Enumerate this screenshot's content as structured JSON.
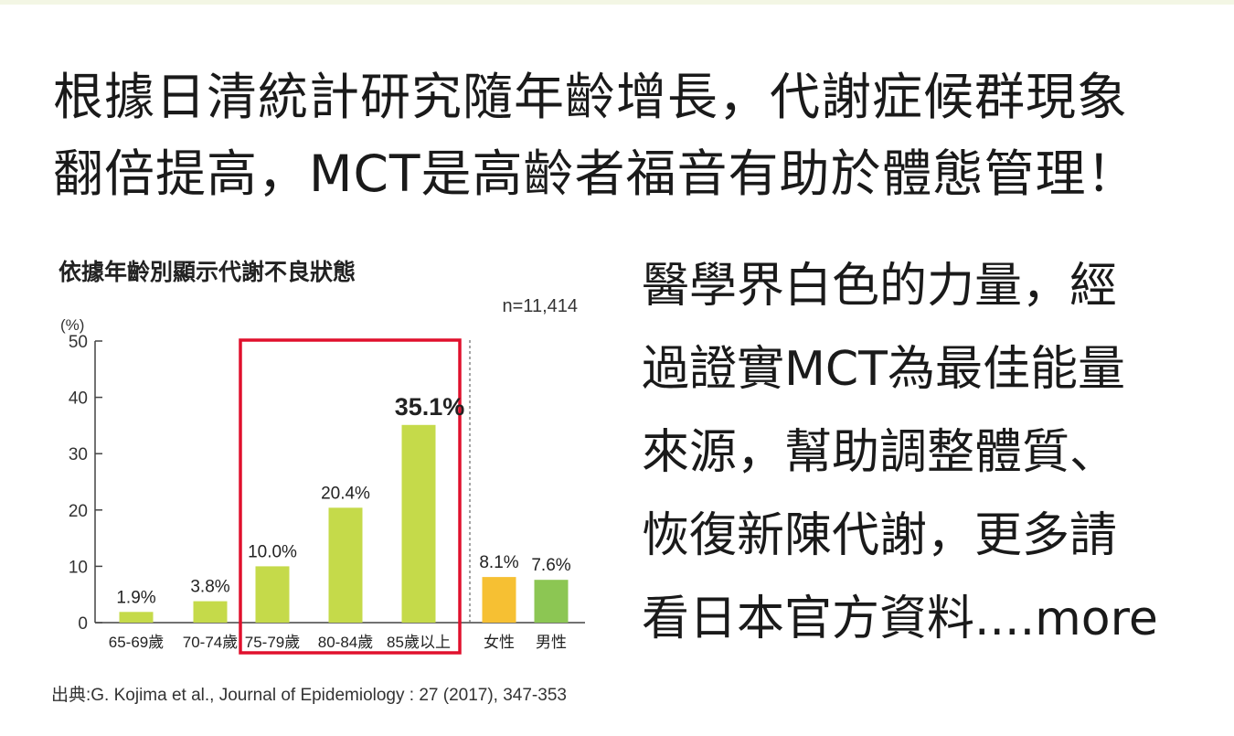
{
  "headline": {
    "line1": "根據日清統計研究隨年齡增長，代謝症候群現象",
    "line2": "翻倍提高，MCT是高齡者福音有助於體態管理！"
  },
  "side_text": {
    "lines": [
      "醫學界白色的力量，經",
      "過證實MCT為最佳能量",
      "來源，幫助調整體質、",
      "恢復新陳代謝，更多請",
      "看日本官方資料....more"
    ]
  },
  "citation": "出典:G. Kojima et al., Journal of Epidemiology : 27 (2017), 347-353",
  "colors": {
    "age_bar": "#c5da4a",
    "female_bar": "#f6c033",
    "male_bar": "#8cc653",
    "highlight_box": "#e0102d"
  },
  "chart_data": {
    "type": "bar",
    "title": "依據年齡別顯示代謝不良狀態",
    "sample_size": "n=11,414",
    "ylabel": "(%)",
    "ylim": [
      0,
      50
    ],
    "yticks": [
      0,
      10,
      20,
      30,
      40,
      50
    ],
    "categories": [
      "65-69歲",
      "70-74歲",
      "75-79歲",
      "80-84歲",
      "85歲以上",
      "女性",
      "男性"
    ],
    "values": [
      1.9,
      3.8,
      10.0,
      20.4,
      35.1,
      8.1,
      7.6
    ],
    "value_labels": [
      "1.9%",
      "3.8%",
      "10.0%",
      "20.4%",
      "35.1%",
      "8.1%",
      "7.6%"
    ],
    "bar_colors": [
      "#c5da4a",
      "#c5da4a",
      "#c5da4a",
      "#c5da4a",
      "#c5da4a",
      "#f6c033",
      "#8cc653"
    ],
    "emphasized_label": "35.1%",
    "highlighted_categories": [
      "75-79歲",
      "80-84歲",
      "85歲以上"
    ],
    "grid": false,
    "legend": "none"
  }
}
